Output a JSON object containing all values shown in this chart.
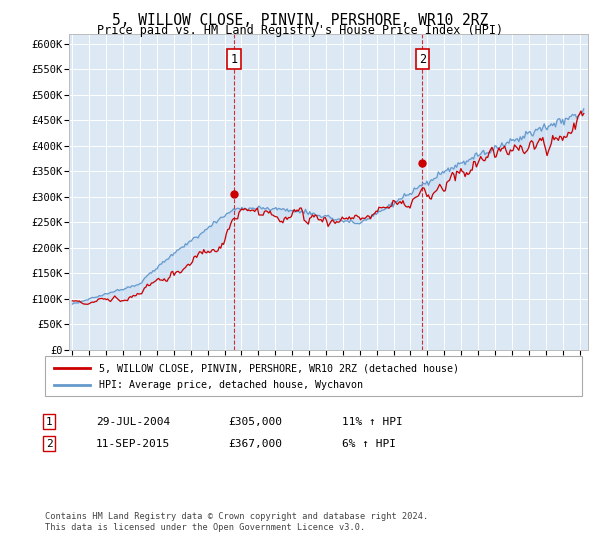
{
  "title": "5, WILLOW CLOSE, PINVIN, PERSHORE, WR10 2RZ",
  "subtitle": "Price paid vs. HM Land Registry's House Price Index (HPI)",
  "legend_label_red": "5, WILLOW CLOSE, PINVIN, PERSHORE, WR10 2RZ (detached house)",
  "legend_label_blue": "HPI: Average price, detached house, Wychavon",
  "annotation1_label": "1",
  "annotation1_date": "29-JUL-2004",
  "annotation1_price": "£305,000",
  "annotation1_hpi": "11% ↑ HPI",
  "annotation2_label": "2",
  "annotation2_date": "11-SEP-2015",
  "annotation2_price": "£367,000",
  "annotation2_hpi": "6% ↑ HPI",
  "footnote": "Contains HM Land Registry data © Crown copyright and database right 2024.\nThis data is licensed under the Open Government Licence v3.0.",
  "ylim": [
    0,
    620000
  ],
  "yticks": [
    0,
    50000,
    100000,
    150000,
    200000,
    250000,
    300000,
    350000,
    400000,
    450000,
    500000,
    550000,
    600000
  ],
  "plot_bg": "#dce9f5",
  "sale1_x": 2004.58,
  "sale1_y": 305000,
  "sale2_x": 2015.71,
  "sale2_y": 367000,
  "xlim_start": 1994.8,
  "xlim_end": 2025.5
}
